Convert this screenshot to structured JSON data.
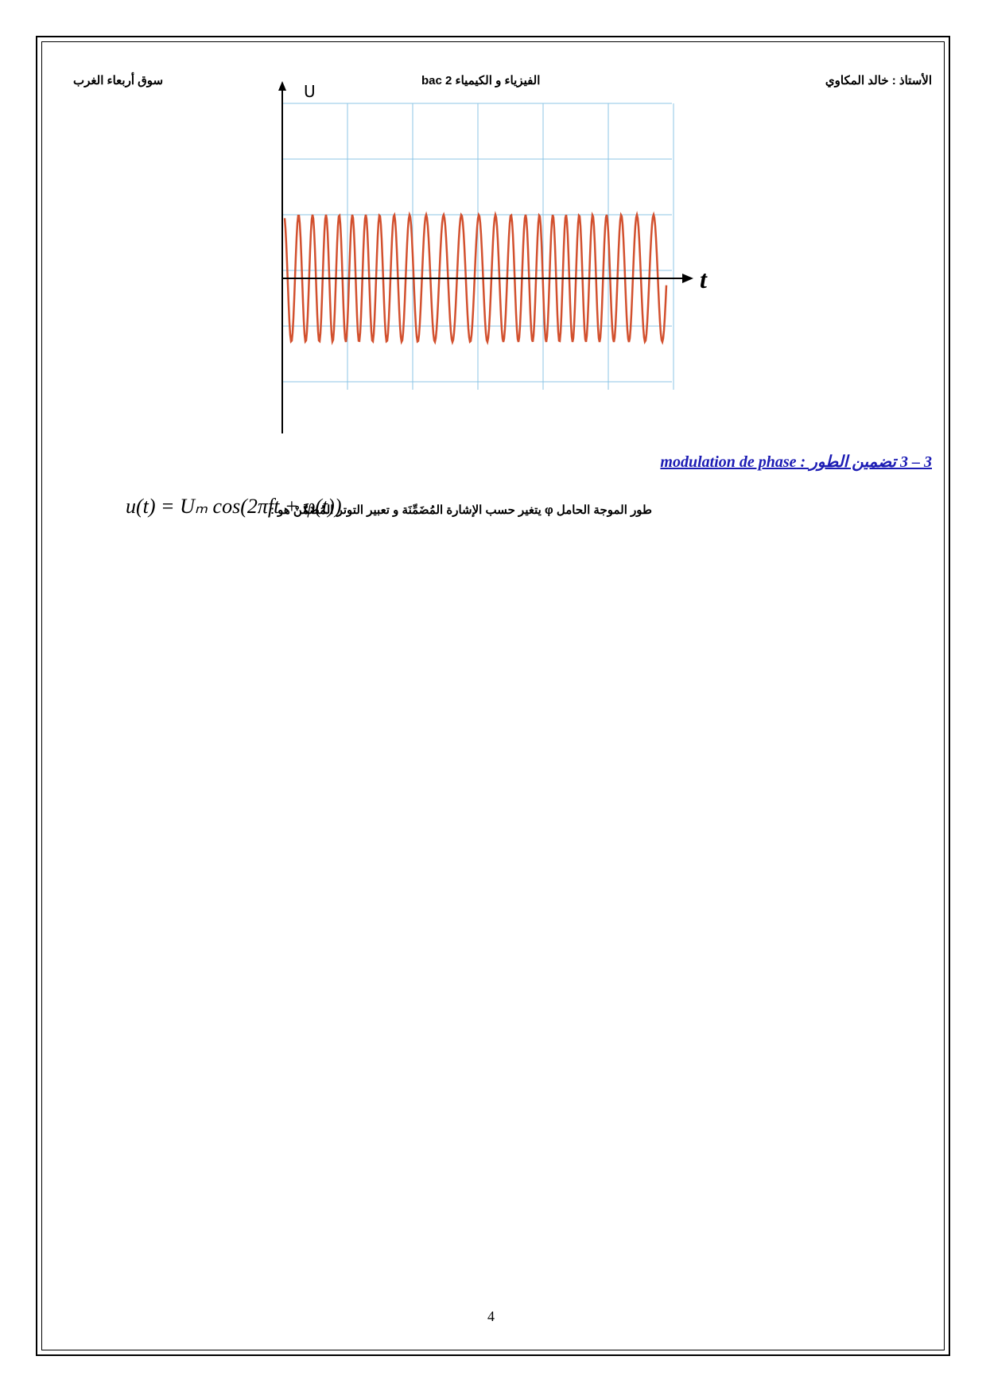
{
  "header": {
    "right": "الأستاذ : خالد المكاوي",
    "center": "الفيزياء و الكيمياء 2 bac",
    "left": "سوق أربعاء الغرب"
  },
  "figure": {
    "y_label": "U",
    "x_label": "t"
  },
  "section": {
    "heading": "3 – 3 تضمين الطور : modulation de phase",
    "text": "طور الموجة الحامل φ يتغير حسب الإشارة المُضَمِّنَة و تعبير التوتر المُضَمَّنْ هو :",
    "formula": "u(t) = Uₘ cos(2πft + φ(t))"
  },
  "page_number": "4"
}
